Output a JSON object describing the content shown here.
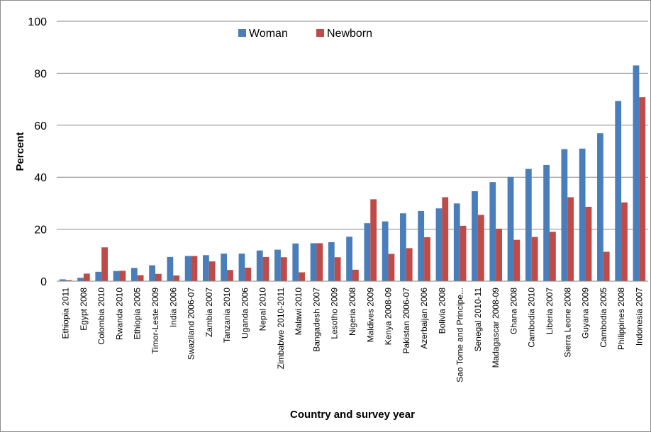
{
  "chart_data": {
    "type": "bar",
    "xlabel": "Country and survey year",
    "ylabel": "Percent",
    "ylim": [
      0,
      100
    ],
    "yticks": [
      0,
      20,
      40,
      60,
      80,
      100
    ],
    "grid": "horizontal",
    "legend_position": "top-center",
    "categories": [
      "Ethiopia 2011",
      "Egypt 2008",
      "Colombia 2010",
      "Rwanda 2010",
      "Ethiopia 2005",
      "Timor-Leste 2009",
      "India 2006",
      "Swaziland 2006-07",
      "Zambia 2007",
      "Tanzania 2010",
      "Uganda 2006",
      "Nepal 2010",
      "Zimbabwe 2010-2011",
      "Malawi 2010",
      "Bangadesh 2007",
      "Lesotho 2009",
      "Nigeria 2008",
      "Maldives 2009",
      "Kenya 2008-09",
      "Pakistan 2006-07",
      "Azerbaijan 2006",
      "Bolivia 2008",
      "Sao Tome and Principe...",
      "Senegal 2010-11",
      "Madagascar 2008-09",
      "Ghana 2008",
      "Cambodia 2010",
      "Liberia 2007",
      "Sierra Leone 2008",
      "Guyana 2009",
      "Cambodia 2005",
      "Philippines 2008",
      "Indonesia 2007"
    ],
    "series": [
      {
        "name": "Woman",
        "color": "#4a7ebb",
        "values": [
          0.7,
          1.3,
          3.6,
          3.9,
          5.1,
          6.1,
          9.3,
          9.7,
          10.0,
          10.6,
          10.6,
          11.8,
          12.1,
          14.5,
          14.6,
          15.0,
          17.1,
          22.3,
          23.0,
          26.1,
          27.0,
          28.0,
          29.9,
          34.6,
          38.1,
          40.1,
          43.2,
          44.7,
          50.8,
          51.0,
          56.9,
          69.3,
          83.0
        ]
      },
      {
        "name": "Newborn",
        "color": "#be4b48",
        "values": [
          0.4,
          2.9,
          13.0,
          4.0,
          2.3,
          2.8,
          2.2,
          9.7,
          7.6,
          4.3,
          5.2,
          9.3,
          9.2,
          3.4,
          14.6,
          9.2,
          4.4,
          31.5,
          10.5,
          12.7,
          16.9,
          32.3,
          21.3,
          25.5,
          20.2,
          15.9,
          17.0,
          19.0,
          32.3,
          28.6,
          11.3,
          30.3,
          70.8
        ]
      }
    ]
  }
}
